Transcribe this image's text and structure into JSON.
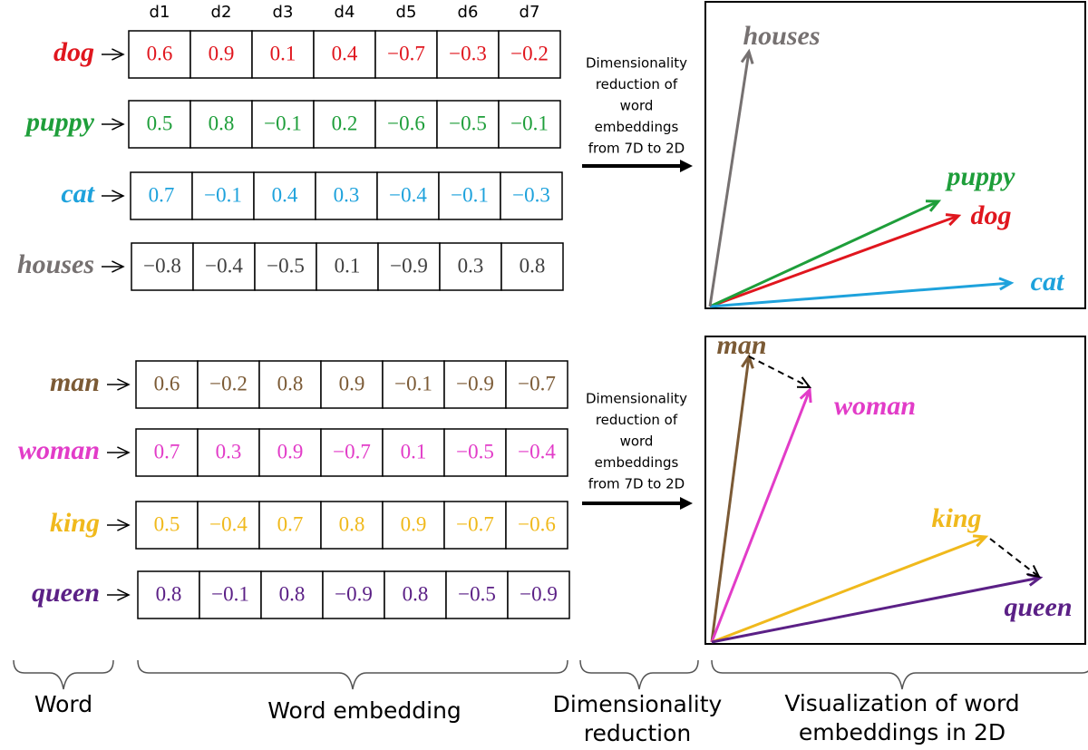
{
  "dimensions": [
    "d1",
    "d2",
    "d3",
    "d4",
    "d5",
    "d6",
    "d7"
  ],
  "groups": [
    {
      "words": [
        {
          "label": "dog",
          "color": "#e0161e",
          "values": [
            "0.6",
            "0.9",
            "0.1",
            "0.4",
            "−0.7",
            "−0.3",
            "−0.2"
          ]
        },
        {
          "label": "puppy",
          "color": "#1e9e3a",
          "values": [
            "0.5",
            "0.8",
            "−0.1",
            "0.2",
            "−0.6",
            "−0.5",
            "−0.1"
          ]
        },
        {
          "label": "cat",
          "color": "#1ea2dc",
          "values": [
            "0.7",
            "−0.1",
            "0.4",
            "0.3",
            "−0.4",
            "−0.1",
            "−0.3"
          ]
        },
        {
          "label": "houses",
          "color": "#767171",
          "values": [
            "−0.8",
            "−0.4",
            "−0.5",
            "0.1",
            "−0.9",
            "0.3",
            "0.8"
          ]
        }
      ],
      "reduction_lines": [
        "Dimensionality",
        "reduction of",
        "word",
        "embeddings",
        "from 7D to 2D"
      ]
    },
    {
      "words": [
        {
          "label": "man",
          "color": "#7b5a35",
          "values": [
            "0.6",
            "−0.2",
            "0.8",
            "0.9",
            "−0.1",
            "−0.9",
            "−0.7"
          ]
        },
        {
          "label": "woman",
          "color": "#e23cc8",
          "values": [
            "0.7",
            "0.3",
            "0.9",
            "−0.7",
            "0.1",
            "−0.5",
            "−0.4"
          ]
        },
        {
          "label": "king",
          "color": "#f0b91c",
          "values": [
            "0.5",
            "−0.4",
            "0.7",
            "0.8",
            "0.9",
            "−0.7",
            "−0.6"
          ]
        },
        {
          "label": "queen",
          "color": "#5b2086",
          "values": [
            "0.8",
            "−0.1",
            "0.8",
            "−0.9",
            "0.8",
            "−0.5",
            "−0.9"
          ]
        }
      ],
      "reduction_lines": [
        "Dimensionality",
        "reduction of",
        "word",
        "embeddings",
        "from 7D to 2D"
      ]
    }
  ],
  "captions": [
    [
      "Word"
    ],
    [
      "Word embedding"
    ],
    [
      "Dimensionality",
      "reduction"
    ],
    [
      "Visualization of word",
      "embeddings  in 2D"
    ]
  ]
}
